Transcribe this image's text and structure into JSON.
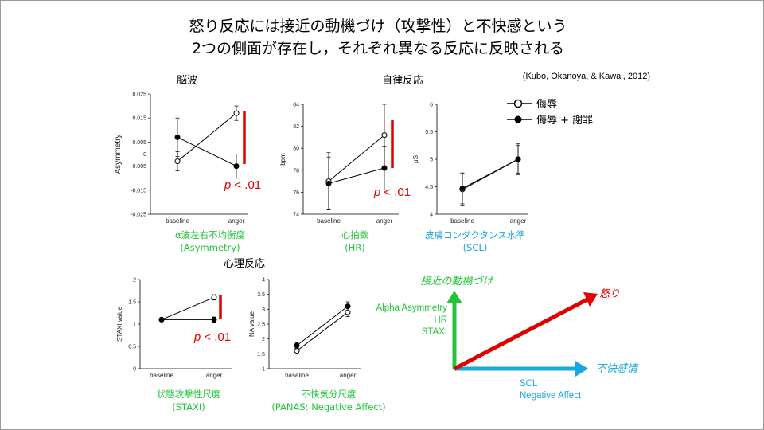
{
  "title": {
    "line1": "怒り反応には接近の動機づけ（攻撃性）と不快感という",
    "line2": "2つの側面が存在し，それぞれ異なる反応に反映される"
  },
  "citation": "(Kubo, Okanoya, & Kawai, 2012)",
  "sections": {
    "brain": "脳波",
    "autonomic": "自律反応",
    "psych": "心理反応"
  },
  "legend": {
    "insult": "侮辱",
    "insult_apology": "侮辱 + 謝罪"
  },
  "colors": {
    "green": "#22c43a",
    "blue": "#1aa7e0",
    "red": "#e00000",
    "line": "#000000"
  },
  "chart_data": [
    {
      "type": "line",
      "ylabel": "Asymmetry",
      "ylim": [
        -0.025,
        0.025
      ],
      "yticks": [
        "0.025",
        "0.015",
        "0.005",
        "0",
        "-0.005",
        "-0.015",
        "-0.025"
      ],
      "categories": [
        "baseline",
        "anger"
      ],
      "series": [
        {
          "name": "侮辱",
          "values": [
            -0.003,
            0.017
          ],
          "err": [
            0.004,
            0.003
          ]
        },
        {
          "name": "侮辱 + 謝罪",
          "values": [
            0.007,
            -0.005
          ],
          "err": [
            0.008,
            0.005
          ]
        }
      ],
      "pvalue": "p < .01",
      "caption_line1": "α波左右不均衡度",
      "caption_line2": "(Asymmetry)"
    },
    {
      "type": "line",
      "ylabel": "bpm",
      "ylim": [
        74,
        84
      ],
      "yticks": [
        "84",
        "82",
        "80",
        "78",
        "76",
        "74"
      ],
      "categories": [
        "baseline",
        "anger"
      ],
      "series": [
        {
          "name": "侮辱",
          "values": [
            77.0,
            81.2
          ],
          "err": [
            2.6,
            2.8
          ]
        },
        {
          "name": "侮辱 + 謝罪",
          "values": [
            76.8,
            78.2
          ],
          "err": [
            2.4,
            2.0
          ]
        }
      ],
      "pvalue": "p < .01",
      "caption_line1": "心拍数",
      "caption_line2": "(HR)"
    },
    {
      "type": "line",
      "ylabel": "μS",
      "ylim": [
        4,
        6
      ],
      "yticks": [
        "6",
        "5.5",
        "5",
        "4.5",
        "4"
      ],
      "categories": [
        "baseline",
        "anger"
      ],
      "series": [
        {
          "name": "侮辱",
          "values": [
            4.45,
            5.0
          ],
          "err": [
            0.3,
            0.28
          ]
        },
        {
          "name": "侮辱 + 謝罪",
          "values": [
            4.47,
            5.0
          ],
          "err": [
            0.28,
            0.25
          ]
        }
      ],
      "caption_line1": "皮膚コンダクタンス水準",
      "caption_line2": "(SCL)"
    },
    {
      "type": "line",
      "ylabel": "STAXI value",
      "ylim": [
        0,
        2
      ],
      "yticks": [
        "2",
        "1.5",
        "1",
        "0.5",
        "0"
      ],
      "categories": [
        "baseline",
        "anger"
      ],
      "series": [
        {
          "name": "侮辱",
          "values": [
            1.1,
            1.6
          ],
          "err": [
            0.0,
            0.06
          ]
        },
        {
          "name": "侮辱 + 謝罪",
          "values": [
            1.1,
            1.1
          ],
          "err": [
            0.0,
            0.06
          ]
        }
      ],
      "pvalue": "p < .01",
      "caption_line1": "状態攻撃性尺度",
      "caption_line2": "(STAXI)"
    },
    {
      "type": "line",
      "ylabel": "NA value",
      "ylim": [
        1,
        4
      ],
      "yticks": [
        "4",
        "3.5",
        "3",
        "2.5",
        "2",
        "1.5",
        "1"
      ],
      "categories": [
        "baseline",
        "anger"
      ],
      "series": [
        {
          "name": "侮辱",
          "values": [
            1.6,
            2.9
          ],
          "err": [
            0.1,
            0.15
          ]
        },
        {
          "name": "侮辱 + 謝罪",
          "values": [
            1.78,
            3.1
          ],
          "err": [
            0.1,
            0.15
          ]
        }
      ],
      "caption_line1": "不快気分尺度",
      "caption_line2": "(PANAS: Negative Affect)"
    }
  ],
  "diagram": {
    "y_axis_label": "接近の動機づけ",
    "y_items": [
      "Alpha Asymmetry",
      "HR",
      "STAXI"
    ],
    "x_axis_label": "不快感情",
    "x_items": [
      "SCL",
      "Negative Affect"
    ],
    "diag_label": "怒り"
  },
  "misc": {
    "dot": "."
  }
}
